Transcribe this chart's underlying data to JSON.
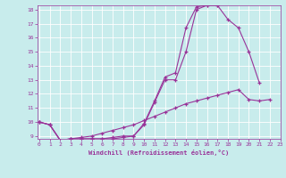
{
  "bg_color": "#c8ecec",
  "grid_color": "#b0d8d8",
  "line_color": "#993399",
  "xlabel": "Windchill (Refroidissement éolien,°C)",
  "xmin": 0,
  "xmax": 23,
  "ymin": 9,
  "ymax": 18,
  "line1_x": [
    0,
    1,
    2,
    3,
    4,
    5,
    6,
    7,
    8,
    9,
    10,
    11,
    12,
    13,
    14,
    15,
    16,
    17,
    18,
    19,
    20,
    21
  ],
  "line1_y": [
    10.0,
    9.8,
    8.7,
    8.8,
    8.8,
    8.8,
    8.8,
    8.8,
    8.9,
    9.0,
    9.8,
    11.4,
    13.0,
    13.0,
    15.0,
    18.0,
    18.3,
    18.3,
    17.3,
    16.7,
    15.0,
    12.8
  ],
  "line2_x": [
    0,
    1,
    2,
    3,
    4,
    5,
    6,
    7,
    8,
    9,
    10,
    11,
    12,
    13,
    14,
    15,
    16,
    17
  ],
  "line2_y": [
    10.0,
    9.8,
    8.7,
    8.8,
    8.8,
    8.8,
    8.8,
    8.9,
    9.0,
    9.0,
    9.9,
    11.5,
    13.2,
    13.5,
    16.7,
    18.2,
    18.3,
    18.3
  ],
  "line3_x": [
    0,
    1,
    2,
    3,
    4,
    5,
    6,
    7,
    8,
    9,
    10,
    11,
    12,
    13,
    14,
    15,
    16,
    17,
    18,
    19,
    20,
    21,
    22
  ],
  "line3_y": [
    10.0,
    9.8,
    8.7,
    8.8,
    8.9,
    9.0,
    9.2,
    9.4,
    9.6,
    9.8,
    10.1,
    10.4,
    10.7,
    11.0,
    11.3,
    11.5,
    11.7,
    11.9,
    12.1,
    12.3,
    11.6,
    11.5,
    11.6
  ]
}
